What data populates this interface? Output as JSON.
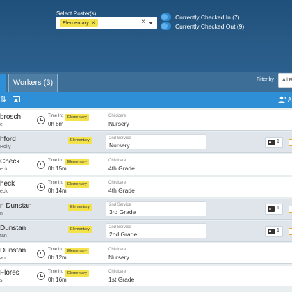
{
  "header": {
    "roster_label": "Select Roster(s):",
    "selected_chip": "Elementary",
    "chip_remove": "×",
    "clear": "×",
    "checked_in_label": "Currently Checked In (7)",
    "checked_out_label": "Currently Checked Out (9)"
  },
  "tabs": {
    "workers_label": "Workers (3)"
  },
  "filter": {
    "label": "Filter by",
    "value": "All R"
  },
  "toolbar": {
    "sort_icon": "sort-icon",
    "image_icon": "image-icon",
    "add_icon": "add-user-icon",
    "add_label": "A"
  },
  "colors": {
    "header_bg": "#285a86",
    "toolbar_bg": "#2f8fd6",
    "badge": "#f3e24a",
    "checkbox": "#f0a830"
  },
  "rows": [
    {
      "name": "brosch",
      "sub": "e",
      "time_label": "Time In:",
      "time": "0h 8m",
      "badge": "Elementary",
      "svc_label": "Childcare",
      "svc": "Nursery",
      "style": "white",
      "boxed": false,
      "id_count": ""
    },
    {
      "name": "hford",
      "sub": "Holly",
      "time_label": "",
      "time": "",
      "badge": "Elementary",
      "svc_label": "2nd Service",
      "svc": "Nursery",
      "style": "gray",
      "boxed": true,
      "id_count": "1"
    },
    {
      "name": "Check",
      "sub": "eck",
      "time_label": "Time In:",
      "time": "0h 15m",
      "badge": "Elementary",
      "svc_label": "Childcare",
      "svc": "4th Grade",
      "style": "white",
      "boxed": false,
      "id_count": ""
    },
    {
      "name": "heck",
      "sub": "eck",
      "time_label": "Time In:",
      "time": "0h 14m",
      "badge": "Elementary",
      "svc_label": "Childcare",
      "svc": "4th Grade",
      "style": "white",
      "boxed": false,
      "id_count": ""
    },
    {
      "name": "n Dunstan",
      "sub": "n",
      "time_label": "",
      "time": "",
      "badge": "Elementary",
      "svc_label": "2nd Service",
      "svc": "3rd Grade",
      "style": "gray",
      "boxed": true,
      "id_count": "1"
    },
    {
      "name": "Dunstan",
      "sub": "tan",
      "time_label": "",
      "time": "",
      "badge": "Elementary",
      "svc_label": "2nd Service",
      "svc": "2nd Grade",
      "style": "gray",
      "boxed": true,
      "id_count": "1"
    },
    {
      "name": "Dunstan",
      "sub": "an",
      "time_label": "Time In:",
      "time": "0h 12m",
      "badge": "Elementary",
      "svc_label": "Childcare",
      "svc": "Nursery",
      "style": "white",
      "boxed": false,
      "id_count": ""
    },
    {
      "name": "Flores",
      "sub": "s",
      "time_label": "Time In:",
      "time": "0h 16m",
      "badge": "Elementary",
      "svc_label": "Childcare",
      "svc": "1st Grade",
      "style": "white",
      "boxed": false,
      "id_count": ""
    }
  ]
}
